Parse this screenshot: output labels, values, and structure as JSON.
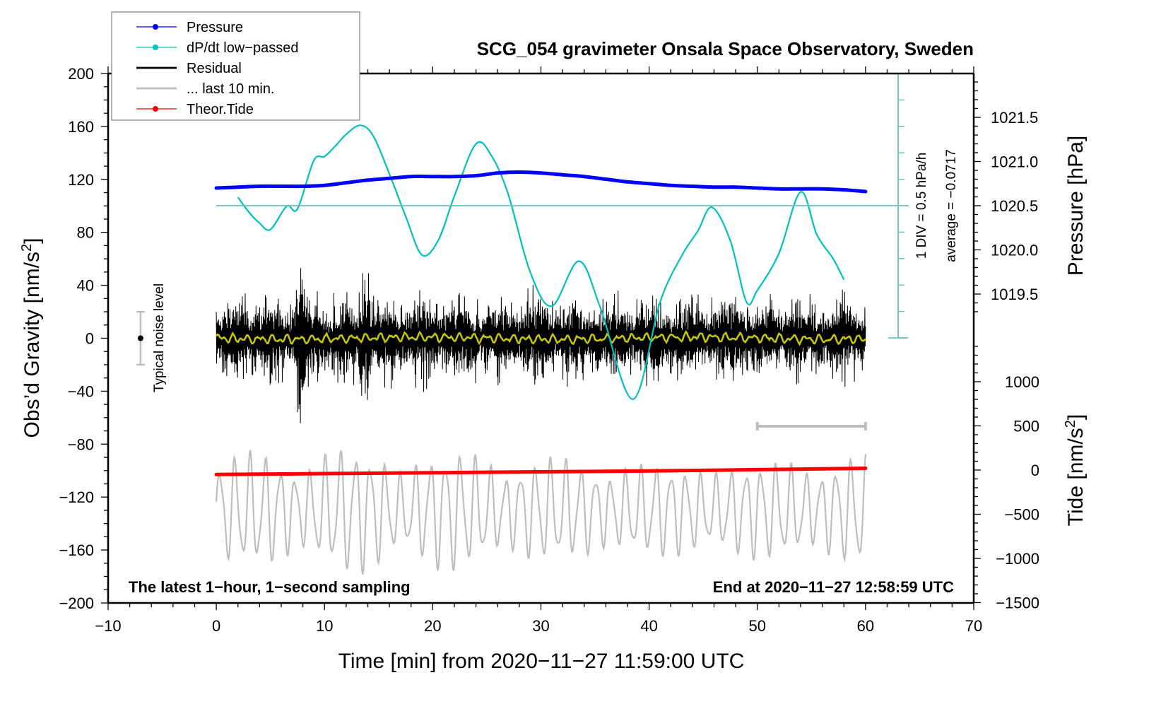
{
  "chart_data": {
    "type": "line",
    "title": "SCG_054 gravimeter Onsala Space Observatory, Sweden",
    "xlabel": "Time [min] from 2020−11−27 11:59:00 UTC",
    "ylabel": "Obs’d Gravity [nm/s",
    "ylabel_sup": "2",
    "ylabel_end": "]",
    "xlim": [
      -10,
      70
    ],
    "ylim": [
      -200,
      200
    ],
    "x_ticks": [
      -10,
      0,
      10,
      20,
      30,
      40,
      50,
      60,
      70
    ],
    "x_tick_labels": [
      "−10",
      "0",
      "10",
      "20",
      "30",
      "40",
      "50",
      "60",
      "70"
    ],
    "y_ticks": [
      200,
      160,
      120,
      80,
      40,
      0,
      -40,
      -80,
      -120,
      -160,
      -200
    ],
    "y_tick_labels": [
      "200",
      "160",
      "120",
      "80",
      "40",
      "0",
      "−40",
      "−80",
      "−120",
      "−160",
      "−200"
    ],
    "pressure_axis": {
      "label": "Pressure [hPa]",
      "range_visible": [
        1019.5,
        1021.5
      ],
      "ticks": [
        1021.5,
        1021.0,
        1020.5,
        1020.0,
        1019.5
      ],
      "tick_labels": [
        "1021.5",
        "1021.0",
        "1020.5",
        "1020.0",
        "1019.5"
      ]
    },
    "tide_axis": {
      "label": "Tide [nm/s",
      "label_sup": "2",
      "label_end": "]",
      "ticks": [
        1000,
        500,
        0,
        -500,
        -1000,
        -1500
      ],
      "tick_labels": [
        "1000",
        "500",
        "0",
        "−500",
        "−1000",
        "−1500"
      ]
    },
    "dpdt_axis": {
      "div_label": "1 DIV = 0.5 hPa/h",
      "average_label": "average = −0.0717",
      "div_value_hPa_per_h": 0.5,
      "average": -0.0717,
      "divisions_above_zero": 5,
      "divisions_below_zero": 5
    },
    "legend": {
      "position": "top-left",
      "entries": [
        {
          "label": "Pressure",
          "color": "#0000ff",
          "marker": "dot"
        },
        {
          "label": "dP/dt low−passed",
          "color": "#00c0c0",
          "marker": "dot"
        },
        {
          "label": "Residual",
          "color": "#000000",
          "marker": "none"
        },
        {
          "label": "... last 10 min.",
          "color": "#bebebe",
          "marker": "none"
        },
        {
          "label": "Theor.Tide",
          "color": "#ff0000",
          "marker": "dot"
        }
      ]
    },
    "series": [
      {
        "name": "Pressure",
        "axis": "pressure_hPa",
        "color": "#0000ff",
        "x": [
          0,
          2,
          4,
          6,
          8,
          10,
          12,
          14,
          16,
          18,
          20,
          22,
          24,
          26,
          28,
          30,
          32,
          34,
          36,
          38,
          40,
          42,
          44,
          46,
          48,
          50,
          52,
          54,
          56,
          58,
          60
        ],
        "values": [
          1020.7,
          1020.71,
          1020.72,
          1020.72,
          1020.72,
          1020.73,
          1020.76,
          1020.79,
          1020.81,
          1020.83,
          1020.83,
          1020.83,
          1020.84,
          1020.87,
          1020.88,
          1020.87,
          1020.85,
          1020.83,
          1020.8,
          1020.77,
          1020.75,
          1020.73,
          1020.72,
          1020.71,
          1020.71,
          1020.7,
          1020.69,
          1020.69,
          1020.69,
          1020.68,
          1020.66
        ]
      },
      {
        "name": "dP/dt low-passed",
        "axis": "dpdt_hPa_per_h",
        "color": "#00c0c0",
        "x": [
          2,
          3,
          4,
          5,
          6.5,
          7.5,
          9,
          10,
          11,
          12,
          13.3,
          14.5,
          16,
          17.5,
          19,
          20.5,
          22,
          24,
          25.5,
          27,
          29,
          31,
          33.5,
          35.5,
          38.5,
          41,
          43,
          44.5,
          45.8,
          47.5,
          49,
          50,
          52,
          54,
          55.5,
          57,
          58
        ],
        "values": [
          0.16,
          -0.12,
          -0.33,
          -0.45,
          -0.01,
          -0.06,
          0.85,
          0.93,
          1.13,
          1.35,
          1.52,
          1.32,
          0.6,
          -0.2,
          -0.93,
          -0.66,
          0.18,
          1.17,
          0.92,
          0.2,
          -1.25,
          -1.9,
          -1.05,
          -1.93,
          -3.66,
          -1.83,
          -0.95,
          -0.48,
          -0.03,
          -0.66,
          -1.82,
          -1.6,
          -0.9,
          0.26,
          -0.55,
          -1.0,
          -1.4
        ]
      },
      {
        "name": "Residual",
        "axis": "gravity_nm_s2",
        "color": "#000000",
        "x_range": [
          0,
          60
        ],
        "approx_envelope": [
          -55,
          55
        ],
        "bursts": [
          {
            "x": 7.8,
            "min": -90,
            "max": 85
          },
          {
            "x": 13.8,
            "min": -75,
            "max": 78
          }
        ],
        "min_observed": -90,
        "max_observed": 85
      },
      {
        "name": "Residual low-passed",
        "axis": "gravity_nm_s2",
        "color": "#c8c800",
        "x_range": [
          0,
          60
        ],
        "approx_mean": 0,
        "approx_amplitude": 4
      },
      {
        "name": "... last 10 min.",
        "axis": "gravity_nm_s2",
        "color": "#bebebe",
        "x_range": [
          0,
          60
        ],
        "center": -130,
        "approx_amplitude": 40,
        "range_marker": [
          50,
          60
        ]
      },
      {
        "name": "Theor.Tide",
        "axis": "tide_nm_s2",
        "color": "#ff0000",
        "x": [
          0,
          10,
          20,
          30,
          40,
          50,
          60
        ],
        "values": [
          -50,
          -40,
          -30,
          -20,
          -10,
          5,
          20
        ]
      }
    ],
    "noise_marker": {
      "label": "Typical noise level",
      "center": 0,
      "range": [
        -20,
        20
      ],
      "x": -7
    },
    "annotations": {
      "bottom_left": "The latest 1−hour, 1−second sampling",
      "bottom_right": "End at 2020−11−27 12:58:59 UTC"
    },
    "grid": false
  }
}
